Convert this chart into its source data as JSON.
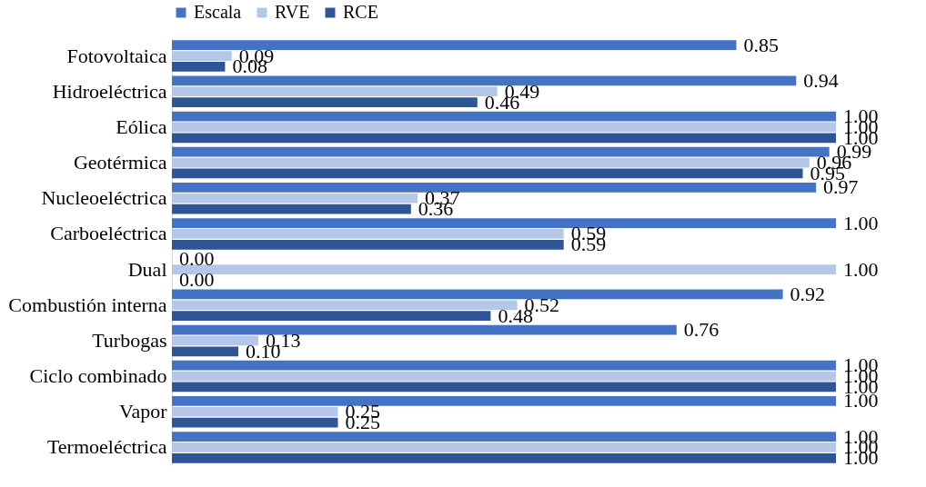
{
  "chart_data": {
    "type": "bar",
    "orientation": "horizontal",
    "categories": [
      "Fotovoltaica",
      "Hidroeléctrica",
      "Eólica",
      "Geotérmica",
      "Nucleoeléctrica",
      "Carboeléctrica",
      "Dual",
      "Combustión interna",
      "Turbogas",
      "Ciclo combinado",
      "Vapor",
      "Termoeléctrica"
    ],
    "series": [
      {
        "name": "Escala",
        "color": "#4472c4",
        "values": [
          0.85,
          0.94,
          1.0,
          0.99,
          0.97,
          1.0,
          0.0,
          0.92,
          0.76,
          1.0,
          1.0,
          1.0
        ],
        "value_labels": [
          "0.85",
          "0.94",
          "1.00",
          "0.99",
          "0.97",
          "1.00",
          "0.00",
          "0.92",
          "0.76",
          "1.00",
          "1.00",
          "1.00"
        ]
      },
      {
        "name": "RVE",
        "color": "#b4c7e7",
        "values": [
          0.09,
          0.49,
          1.0,
          0.96,
          0.37,
          0.59,
          1.0,
          0.52,
          0.13,
          1.0,
          0.25,
          1.0
        ],
        "value_labels": [
          "0.09",
          "0.49",
          "1.00",
          "0.96",
          "0.37",
          "0.59",
          "1.00",
          "0.52",
          "0.13",
          "1.00",
          "0.25",
          "1.00"
        ]
      },
      {
        "name": "RCE",
        "color": "#2f5597",
        "values": [
          0.08,
          0.46,
          1.0,
          0.95,
          0.36,
          0.59,
          0.0,
          0.48,
          0.1,
          1.0,
          0.25,
          1.0
        ],
        "value_labels": [
          "0.08",
          "0.46",
          "1.00",
          "0.95",
          "0.36",
          "0.59",
          "0.00",
          "0.48",
          "0.10",
          "1.00",
          "0.25",
          "1.00"
        ]
      }
    ],
    "xlim": [
      0,
      1
    ],
    "legend": "top",
    "grid": false,
    "tick_labels": "y"
  }
}
